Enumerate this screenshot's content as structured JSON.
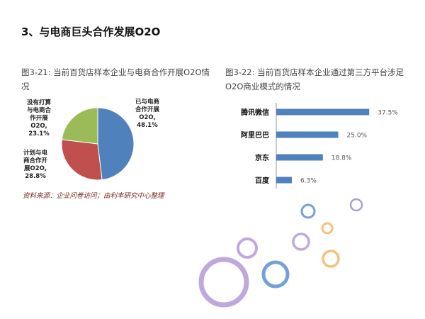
{
  "heading": "3、与电商巨头合作发展O2O",
  "left_caption": "图3-21:    当前百货店样本企业与电商合作开展O2O情况",
  "right_caption": "图3-22:    当前百货店样本企业通过第三方平台涉足O2O商业模式的情况",
  "source": "资料来源：企业问卷访问；由利丰研究中心整理",
  "chart_data": [
    {
      "type": "pie",
      "title": "图3-21:    当前百货店样本企业与电商合作开展O2O情况",
      "slices": [
        {
          "label_lines": [
            "已与电商",
            "合作开展",
            "O2O,",
            "48.1%"
          ],
          "value": 48.1,
          "color": "#4f81bd"
        },
        {
          "label_lines": [
            "计划与电",
            "商合作开",
            "展O2O,",
            "28.8%"
          ],
          "value": 28.8,
          "color": "#c0504d"
        },
        {
          "label_lines": [
            "没有打算",
            "与电商合",
            "作开展",
            "O2O,",
            "23.1%"
          ],
          "value": 23.1,
          "color": "#9bbb59"
        }
      ]
    },
    {
      "type": "bar",
      "orientation": "horizontal",
      "title": "图3-22:    当前百货店样本企业通过第三方平台涉足O2O商业模式的情况",
      "categories": [
        "腾讯微信",
        "阿里巴巴",
        "京东",
        "百度"
      ],
      "values": [
        37.5,
        25.0,
        18.8,
        6.3
      ],
      "value_labels": [
        "37.5%",
        "25.0%",
        "18.8%",
        "6.3%"
      ],
      "xlim": [
        0,
        40
      ],
      "color": "#4f81bd",
      "grid": false
    }
  ],
  "decoration": {
    "ring_colors": [
      "#b49ad6",
      "#5b8fd0",
      "#f4b56a",
      "#9a8fc9"
    ]
  }
}
